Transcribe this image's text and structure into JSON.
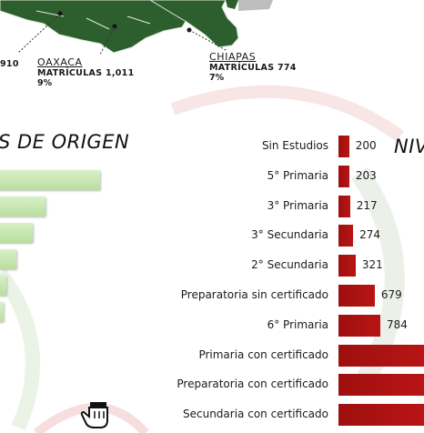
{
  "map": {
    "partial_value": "910",
    "oaxaca": {
      "name": "OAXACA",
      "matriculas": "MATRÍCULAS 1,011",
      "pct": "9%"
    },
    "chiapas": {
      "name": "CHIAPAS",
      "matriculas": "MATRÍCULAS 774",
      "pct": "7%"
    }
  },
  "left_panel": {
    "title_partial": "S DE ORIGEN"
  },
  "right_panel": {
    "title_partial": "NIV"
  },
  "colors": {
    "map_green": "#2c5f2d",
    "bar_red": "#b01212",
    "bar_green": "#c9e8b6"
  },
  "chart_data": {
    "type": "bar",
    "orientation": "horizontal",
    "categories": [
      "Sin Estudios",
      "5° Primaria",
      "3° Primaria",
      "3° Secundaria",
      "2° Secundaria",
      "Preparatoria sin certificado",
      "6° Primaria",
      "Primaria con certificado",
      "Preparatoria con certificado",
      "Secundaria con certificado"
    ],
    "values": [
      200,
      203,
      217,
      274,
      321,
      679,
      784,
      null,
      null,
      null
    ],
    "value_labels": [
      "200",
      "203",
      "217",
      "274",
      "321",
      "679",
      "784",
      "",
      "",
      ""
    ]
  }
}
